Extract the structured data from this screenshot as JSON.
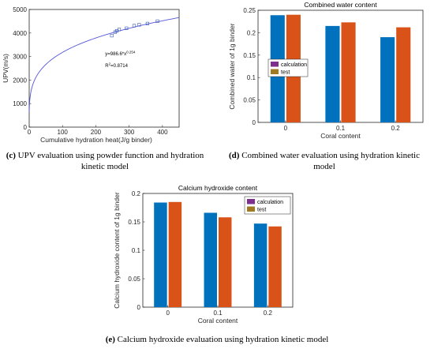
{
  "chart_data": [
    {
      "id": "c",
      "type": "scatter",
      "title": "",
      "xlabel": "Cumulative hydration heat(J/g binder)",
      "ylabel": "UPV(m/s)",
      "xlim": [
        0,
        450
      ],
      "ylim": [
        0,
        5000
      ],
      "xticks": [
        0,
        100,
        200,
        300,
        400
      ],
      "yticks": [
        0,
        1000,
        2000,
        3000,
        4000,
        5000
      ],
      "points": [
        [
          248,
          3890
        ],
        [
          258,
          4040
        ],
        [
          263,
          4090
        ],
        [
          270,
          4150
        ],
        [
          292,
          4200
        ],
        [
          315,
          4310
        ],
        [
          330,
          4350
        ],
        [
          355,
          4400
        ],
        [
          385,
          4500
        ]
      ],
      "fit": {
        "a": 986.6,
        "b": 0.254
      },
      "annotation_eq": "y=986.6*x",
      "annotation_exp": "0.254",
      "annotation_r": "R",
      "annotation_r_sup": "2",
      "annotation_r_val": "=0.8714",
      "grid": false,
      "caption_letter": "(c)",
      "caption_text": " UPV evaluation using powder function and hydration kinetic model"
    },
    {
      "id": "d",
      "type": "bar",
      "title": "Combined water content",
      "xlabel": "Coral content",
      "ylabel": "Combined water of 1g binder",
      "categories": [
        "0",
        "0.1",
        "0.2"
      ],
      "series": [
        {
          "name": "calculation",
          "values": [
            0.239,
            0.215,
            0.19
          ]
        },
        {
          "name": "test",
          "values": [
            0.24,
            0.223,
            0.212
          ]
        }
      ],
      "ylim": [
        0,
        0.25
      ],
      "yticks": [
        "0",
        "0.05",
        "0.1",
        "0.15",
        "0.2",
        "0.25"
      ],
      "legend": "center-left",
      "grid": false,
      "caption_letter": "(d)",
      "caption_text": " Combined water evaluation using hydration kinetic model"
    },
    {
      "id": "e",
      "type": "bar",
      "title": "Calcium hydroxide content",
      "xlabel": "Coral content",
      "ylabel": "Calcium hydroxide content of 1g binder",
      "categories": [
        "0",
        "0.1",
        "0.2"
      ],
      "series": [
        {
          "name": "calculation",
          "values": [
            0.184,
            0.166,
            0.147
          ]
        },
        {
          "name": "test",
          "values": [
            0.185,
            0.158,
            0.142
          ]
        }
      ],
      "ylim": [
        0,
        0.2
      ],
      "yticks": [
        "0",
        "0.05",
        "0.1",
        "0.15",
        "0.2"
      ],
      "legend": "top-right",
      "grid": false,
      "caption_letter": "(e)",
      "caption_text": " Calcium hydroxide evaluation using hydration kinetic model"
    }
  ],
  "colors": {
    "calculation": "#0072BD",
    "test": "#D95319",
    "fit_line": "#5555dd",
    "marker": "#3b5bb5",
    "legend_calc": "#7E2F8E",
    "legend_test": "#A07A20"
  }
}
